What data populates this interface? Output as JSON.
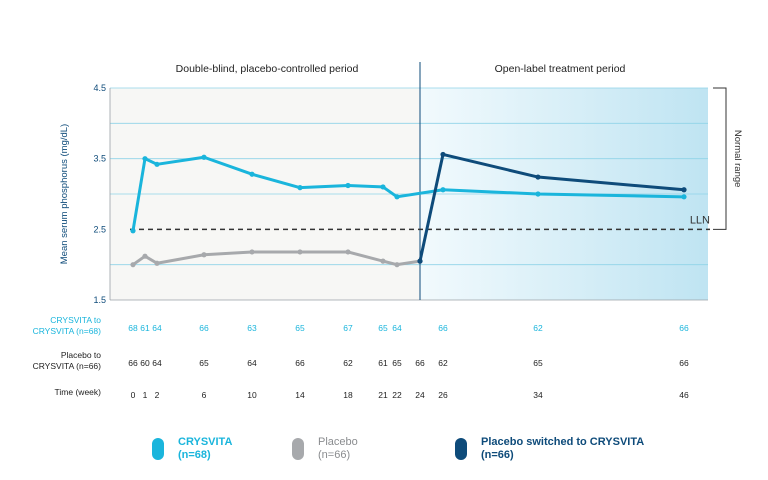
{
  "chart_data": {
    "type": "line",
    "ylabel": "Mean serum phosphorus (mg/dL)",
    "ylim": [
      1.5,
      4.5
    ],
    "y_ticks": [
      "1.5",
      "2.5",
      "3.5",
      "4.5"
    ],
    "x_label": "Time (week)",
    "x": [
      0,
      1,
      2,
      6,
      10,
      14,
      18,
      21,
      22,
      24,
      26,
      34,
      46
    ],
    "x_tick_labels": [
      "0",
      "1",
      "2",
      "6",
      "10",
      "14",
      "18",
      "21",
      "22",
      "24",
      "26",
      "34",
      "46"
    ],
    "periods": [
      {
        "label": "Double-blind, placebo-controlled period",
        "from": 0,
        "to": 24
      },
      {
        "label": "Open-label treatment period",
        "from": 24,
        "to": 46
      }
    ],
    "reference_line": {
      "value": 2.5,
      "label": "LLN"
    },
    "normal_range": {
      "label": "Normal range",
      "from": 2.5,
      "to": 4.5
    },
    "series": [
      {
        "name": "CRYSVITA",
        "n_label": "(n=68)",
        "color": "#1ab5dc",
        "x": [
          0,
          1,
          2,
          6,
          10,
          14,
          18,
          21,
          22,
          26,
          34,
          46
        ],
        "values": [
          2.48,
          3.5,
          3.42,
          3.52,
          3.28,
          3.09,
          3.12,
          3.1,
          2.96,
          3.06,
          3.0,
          2.96
        ]
      },
      {
        "name": "Placebo",
        "n_label": "(n=66)",
        "color": "#a7a9ac",
        "x": [
          0,
          1,
          2,
          6,
          10,
          14,
          18,
          21,
          22,
          24
        ],
        "values": [
          2.0,
          2.12,
          2.02,
          2.14,
          2.18,
          2.18,
          2.18,
          2.05,
          2.0,
          2.05
        ]
      },
      {
        "name": "Placebo switched to CRYSVITA",
        "n_label": "(n=66)",
        "color": "#0e4b7a",
        "x": [
          24,
          26,
          34,
          46
        ],
        "values": [
          2.05,
          3.56,
          3.24,
          3.06
        ]
      }
    ],
    "table": {
      "rows": [
        {
          "label_lines": [
            "CRYSVITA to",
            "CRYSVITA (n=68)"
          ],
          "color": "#1ab5dc",
          "values": [
            "68",
            "61",
            "64",
            "66",
            "63",
            "65",
            "67",
            "65",
            "64",
            "",
            "66",
            "62",
            "66"
          ]
        },
        {
          "label_lines": [
            "Placebo to",
            "CRYSVITA (n=66)"
          ],
          "color": "#222222",
          "values": [
            "66",
            "60",
            "64",
            "65",
            "64",
            "66",
            "62",
            "61",
            "65",
            "66",
            "62",
            "65",
            "66"
          ]
        },
        {
          "label_lines": [
            "Time (week)"
          ],
          "color": "#222222",
          "values": [
            "0",
            "1",
            "2",
            "6",
            "10",
            "14",
            "18",
            "21",
            "22",
            "24",
            "26",
            "34",
            "46"
          ]
        }
      ]
    }
  }
}
